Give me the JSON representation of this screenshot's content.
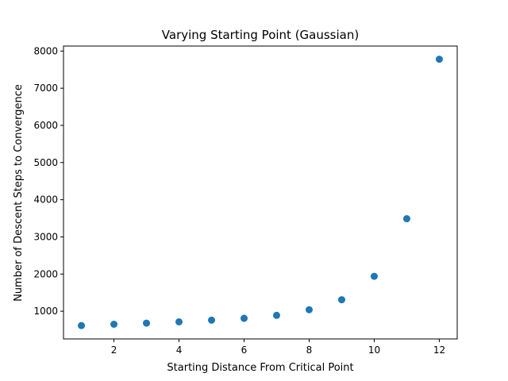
{
  "chart_data": {
    "type": "scatter",
    "title": "Varying Starting Point (Gaussian)",
    "xlabel": "Starting Distance From Critical Point",
    "ylabel": "Number of Descent Steps to Convergence",
    "xlim": [
      0.45,
      12.55
    ],
    "ylim": [
      255,
      8135
    ],
    "xticks": [
      2,
      4,
      6,
      8,
      10,
      12
    ],
    "yticks": [
      1000,
      2000,
      3000,
      4000,
      5000,
      6000,
      7000,
      8000
    ],
    "grid": false,
    "marker_color": "#1f77b4",
    "series": [
      {
        "x": [
          1,
          2,
          3,
          4,
          5,
          6,
          7,
          8,
          9,
          10,
          11,
          12
        ],
        "y": [
          615,
          650,
          680,
          715,
          760,
          810,
          890,
          1040,
          1310,
          1940,
          3490,
          7780
        ]
      }
    ]
  }
}
